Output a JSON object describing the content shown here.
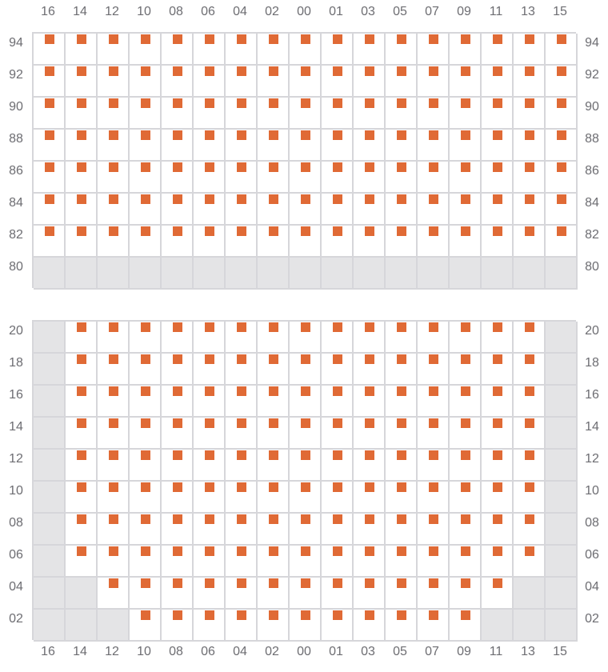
{
  "colors": {
    "seat": "#e06a35",
    "blocked": "#e4e4e6",
    "grid": "#d6d6da",
    "label": "#6d6d72"
  },
  "columns": [
    "16",
    "14",
    "12",
    "10",
    "08",
    "06",
    "04",
    "02",
    "00",
    "01",
    "03",
    "05",
    "07",
    "09",
    "11",
    "13",
    "15"
  ],
  "sections": [
    {
      "rows": [
        {
          "label": "94",
          "cells": "SSSSSSSSSSSSSSSSS"
        },
        {
          "label": "92",
          "cells": "SSSSSSSSSSSSSSSSS"
        },
        {
          "label": "90",
          "cells": "SSSSSSSSSSSSSSSSS"
        },
        {
          "label": "88",
          "cells": "SSSSSSSSSSSSSSSSS"
        },
        {
          "label": "86",
          "cells": "SSSSSSSSSSSSSSSSS"
        },
        {
          "label": "84",
          "cells": "SSSSSSSSSSSSSSSSS"
        },
        {
          "label": "82",
          "cells": "SSSSSSSSSSSSSSSSS"
        },
        {
          "label": "80",
          "cells": "XXXXXXXXXXXXXXXXX"
        }
      ]
    },
    {
      "rows": [
        {
          "label": "20",
          "cells": "XSSSSSSSSSSSSSSSX"
        },
        {
          "label": "18",
          "cells": "XSSSSSSSSSSSSSSSX"
        },
        {
          "label": "16",
          "cells": "XSSSSSSSSSSSSSSSX"
        },
        {
          "label": "14",
          "cells": "XSSSSSSSSSSSSSSSX"
        },
        {
          "label": "12",
          "cells": "XSSSSSSSSSSSSSSSX"
        },
        {
          "label": "10",
          "cells": "XSSSSSSSSSSSSSSSX"
        },
        {
          "label": "08",
          "cells": "XSSSSSSSSSSSSSSSX"
        },
        {
          "label": "06",
          "cells": "XSSSSSSSSSSSSSSSX"
        },
        {
          "label": "04",
          "cells": "XXSSSSSSSSSSSSSXX"
        },
        {
          "label": "02",
          "cells": "XXXSSSSSSSSSSSXXX"
        }
      ]
    }
  ]
}
